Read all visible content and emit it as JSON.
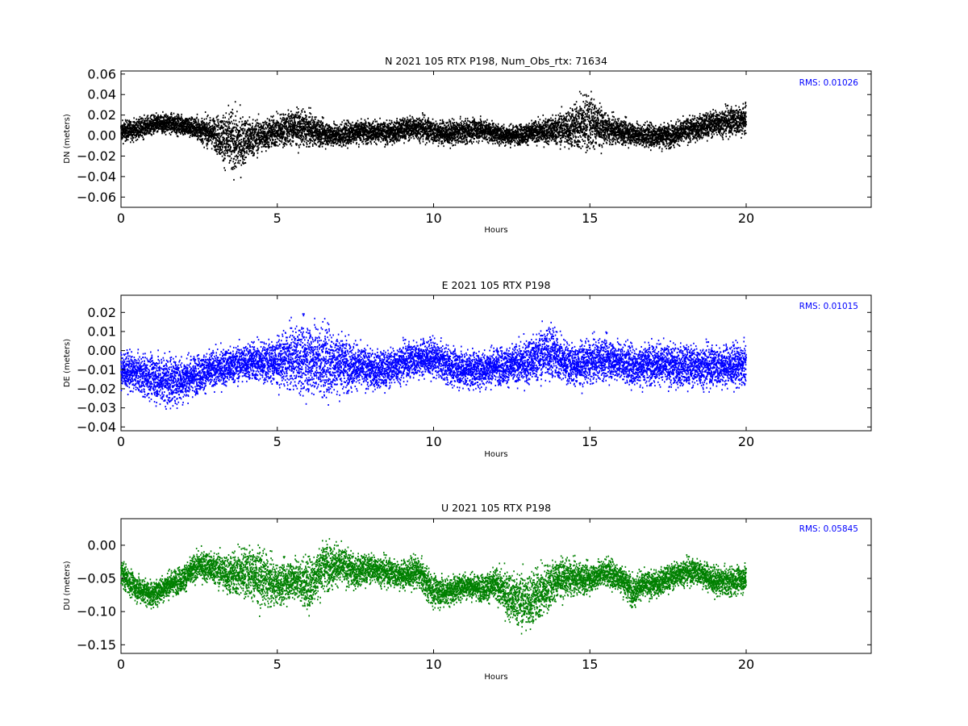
{
  "chart_data": [
    {
      "type": "scatter",
      "title": "N 2021 105 RTX  P198, Num_Obs_rtx: 71634",
      "xlabel": "Hours",
      "ylabel": "DN (meters)",
      "xlim": [
        0,
        24
      ],
      "ylim": [
        -0.07,
        0.063
      ],
      "xticks": [
        0,
        5,
        10,
        15,
        20
      ],
      "yticks": [
        0.06,
        0.04,
        0.02,
        0.0,
        -0.02,
        -0.04,
        -0.06
      ],
      "yticklabels": [
        "0.06",
        "0.04",
        "0.02",
        "0.00",
        "−0.02",
        "−0.04",
        "−0.06"
      ],
      "annotation": "RMS:  0.01026",
      "color": "#000000",
      "annotation_color": "#0000ff",
      "grid": false,
      "series": [
        {
          "x": [
            0,
            0.5,
            1,
            1.5,
            2,
            2.5,
            3,
            3.25,
            3.5,
            3.75,
            4,
            4.5,
            5,
            5.5,
            6,
            6.5,
            7,
            7.5,
            8,
            8.5,
            9,
            9.5,
            10,
            10.5,
            11,
            11.5,
            12,
            12.5,
            13,
            13.5,
            14,
            14.5,
            14.75,
            15,
            15.25,
            15.5,
            16,
            16.4,
            16.6,
            17,
            17.5,
            18,
            18.5,
            19,
            19.5,
            20
          ],
          "y": [
            0.004,
            0.006,
            0.01,
            0.012,
            0.01,
            0.006,
            0.002,
            -0.002,
            -0.006,
            -0.008,
            -0.004,
            0.0,
            0.004,
            0.008,
            0.006,
            0.002,
            0.0,
            0.004,
            0.004,
            0.002,
            0.006,
            0.008,
            0.004,
            0.002,
            0.004,
            0.006,
            0.002,
            0.0,
            0.002,
            0.004,
            0.006,
            0.008,
            0.012,
            0.014,
            0.01,
            0.006,
            0.004,
            0.002,
            0.0,
            0.0,
            0.0,
            0.004,
            0.008,
            0.012,
            0.014,
            0.016
          ],
          "spread": [
            0.01,
            0.01,
            0.01,
            0.01,
            0.01,
            0.012,
            0.016,
            0.024,
            0.032,
            0.03,
            0.022,
            0.016,
            0.016,
            0.018,
            0.016,
            0.012,
            0.012,
            0.012,
            0.011,
            0.011,
            0.011,
            0.012,
            0.012,
            0.012,
            0.012,
            0.011,
            0.01,
            0.01,
            0.01,
            0.012,
            0.016,
            0.022,
            0.028,
            0.03,
            0.022,
            0.014,
            0.012,
            0.012,
            0.012,
            0.012,
            0.012,
            0.012,
            0.012,
            0.013,
            0.014,
            0.016
          ]
        }
      ]
    },
    {
      "type": "scatter",
      "title": "E 2021 105 RTX  P198",
      "xlabel": "Hours",
      "ylabel": "DE (meters)",
      "xlim": [
        0,
        24
      ],
      "ylim": [
        -0.042,
        0.029
      ],
      "xticks": [
        0,
        5,
        10,
        15,
        20
      ],
      "yticks": [
        0.02,
        0.01,
        0.0,
        -0.01,
        -0.02,
        -0.03,
        -0.04
      ],
      "yticklabels": [
        "0.02",
        "0.01",
        "0.00",
        "−0.01",
        "−0.02",
        "−0.03",
        "−0.04"
      ],
      "annotation": "RMS:  0.01015",
      "color": "#0000ff",
      "annotation_color": "#0000ff",
      "grid": false,
      "series": [
        {
          "x": [
            0,
            0.5,
            1,
            1.5,
            2,
            2.5,
            3,
            3.5,
            4,
            4.5,
            5,
            5.5,
            6,
            6.5,
            7,
            7.5,
            8,
            8.5,
            9,
            9.5,
            10,
            10.5,
            11,
            11.5,
            12,
            12.5,
            13,
            13.5,
            13.75,
            14,
            14.5,
            15,
            15.5,
            16,
            16.4,
            16.6,
            17,
            17.5,
            18,
            18.5,
            19,
            19.5,
            20
          ],
          "y": [
            -0.01,
            -0.012,
            -0.014,
            -0.016,
            -0.015,
            -0.012,
            -0.01,
            -0.008,
            -0.006,
            -0.006,
            -0.006,
            -0.004,
            -0.004,
            -0.006,
            -0.006,
            -0.008,
            -0.01,
            -0.01,
            -0.006,
            -0.004,
            -0.004,
            -0.008,
            -0.01,
            -0.01,
            -0.008,
            -0.008,
            -0.006,
            -0.002,
            0.0,
            -0.004,
            -0.008,
            -0.006,
            -0.004,
            -0.006,
            -0.008,
            -0.008,
            -0.006,
            -0.008,
            -0.008,
            -0.008,
            -0.008,
            -0.008,
            -0.008
          ],
          "spread": [
            0.01,
            0.01,
            0.012,
            0.014,
            0.012,
            0.01,
            0.01,
            0.01,
            0.01,
            0.011,
            0.012,
            0.016,
            0.02,
            0.02,
            0.016,
            0.012,
            0.01,
            0.01,
            0.01,
            0.01,
            0.01,
            0.01,
            0.01,
            0.01,
            0.01,
            0.01,
            0.012,
            0.014,
            0.016,
            0.012,
            0.011,
            0.011,
            0.011,
            0.011,
            0.011,
            0.011,
            0.011,
            0.011,
            0.011,
            0.011,
            0.011,
            0.011,
            0.012
          ]
        }
      ]
    },
    {
      "type": "scatter",
      "title": "U 2021 105 RTX  P198",
      "xlabel": "Hours",
      "ylabel": "DU (meters)",
      "xlim": [
        0,
        24
      ],
      "ylim": [
        -0.163,
        0.04
      ],
      "xticks": [
        0,
        5,
        10,
        15,
        20
      ],
      "yticks": [
        0.0,
        -0.05,
        -0.1,
        -0.15
      ],
      "yticklabels": [
        "0.00",
        "−0.05",
        "−0.10",
        "−0.15"
      ],
      "annotation": "RMS:  0.05845",
      "color": "#008000",
      "annotation_color": "#0000ff",
      "grid": false,
      "series": [
        {
          "x": [
            0,
            0.25,
            0.5,
            1,
            1.5,
            2,
            2.5,
            3,
            3.5,
            4,
            4.5,
            5,
            5.5,
            6,
            6.5,
            7,
            7.5,
            8,
            8.5,
            9,
            9.5,
            10,
            10.5,
            11,
            11.5,
            12,
            12.5,
            13,
            13.5,
            14,
            14.5,
            15,
            15.5,
            16,
            16.4,
            16.6,
            17,
            17.5,
            18,
            18.5,
            19,
            19.5,
            20
          ],
          "y": [
            -0.04,
            -0.055,
            -0.065,
            -0.075,
            -0.06,
            -0.05,
            -0.03,
            -0.035,
            -0.045,
            -0.04,
            -0.05,
            -0.06,
            -0.05,
            -0.06,
            -0.03,
            -0.03,
            -0.04,
            -0.035,
            -0.04,
            -0.045,
            -0.04,
            -0.07,
            -0.07,
            -0.06,
            -0.065,
            -0.06,
            -0.08,
            -0.085,
            -0.07,
            -0.05,
            -0.05,
            -0.05,
            -0.04,
            -0.05,
            -0.07,
            -0.06,
            -0.06,
            -0.05,
            -0.04,
            -0.04,
            -0.055,
            -0.055,
            -0.05
          ],
          "spread": [
            0.02,
            0.02,
            0.02,
            0.02,
            0.02,
            0.02,
            0.022,
            0.025,
            0.032,
            0.04,
            0.042,
            0.03,
            0.032,
            0.04,
            0.038,
            0.03,
            0.025,
            0.022,
            0.022,
            0.022,
            0.025,
            0.025,
            0.022,
            0.02,
            0.02,
            0.025,
            0.04,
            0.045,
            0.04,
            0.03,
            0.025,
            0.022,
            0.022,
            0.022,
            0.025,
            0.022,
            0.02,
            0.02,
            0.02,
            0.02,
            0.022,
            0.022,
            0.02
          ]
        }
      ]
    }
  ]
}
